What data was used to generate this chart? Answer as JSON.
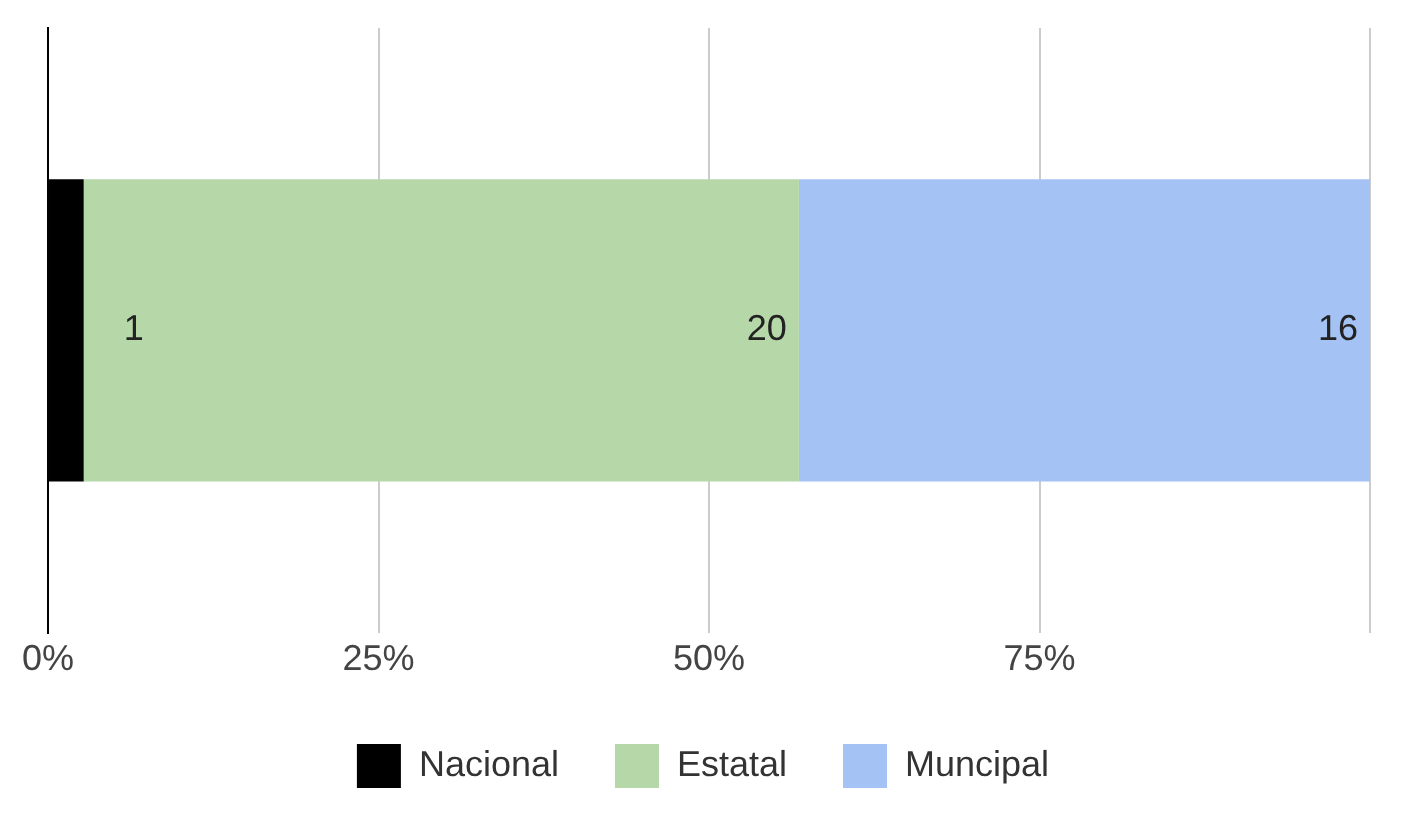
{
  "chart_data": {
    "type": "bar",
    "orientation": "horizontal",
    "stacked": true,
    "categories": [
      null
    ],
    "series": [
      {
        "name": "Nacional",
        "color": "#000000",
        "values": [
          2.7
        ]
      },
      {
        "name": "Estatal",
        "color": "#b6d7a8",
        "values": [
          54.1
        ]
      },
      {
        "name": "Muncipal",
        "color": "#a4c2f4",
        "values": [
          43.2
        ]
      }
    ],
    "annotations": [
      {
        "text": "1",
        "x": 2.7
      },
      {
        "text": "20",
        "x": 56.8
      },
      {
        "text": "16",
        "x": 100
      }
    ],
    "xlim": [
      0,
      100
    ],
    "xticks": [
      {
        "value": 0,
        "label": "0%"
      },
      {
        "value": 25,
        "label": "25%"
      },
      {
        "value": 50,
        "label": "50%"
      },
      {
        "value": 75,
        "label": "75%"
      },
      {
        "value": 100,
        "label": null
      }
    ],
    "grid": "x",
    "legend": "bottom",
    "tick_labels": "x"
  }
}
